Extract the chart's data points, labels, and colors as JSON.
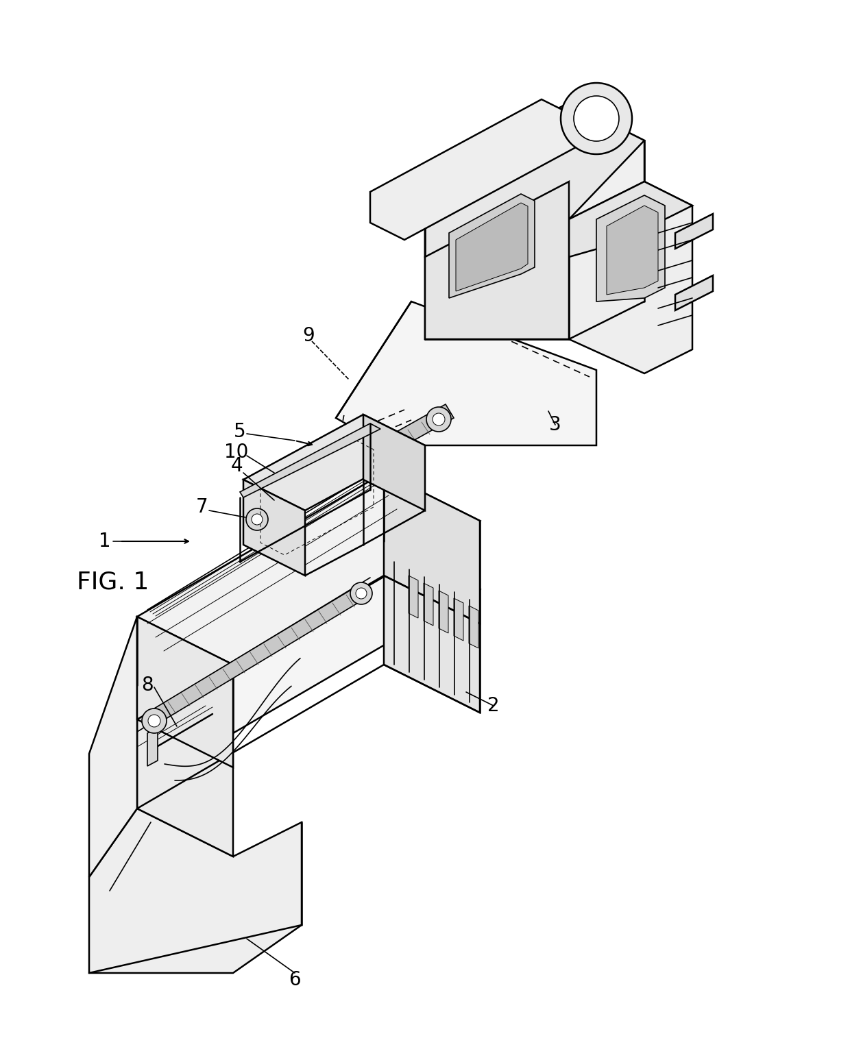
{
  "background_color": "#ffffff",
  "line_color": "#000000",
  "fig_label": "FIG. 1",
  "lw_main": 1.8,
  "lw_med": 1.2,
  "lw_thin": 0.7
}
